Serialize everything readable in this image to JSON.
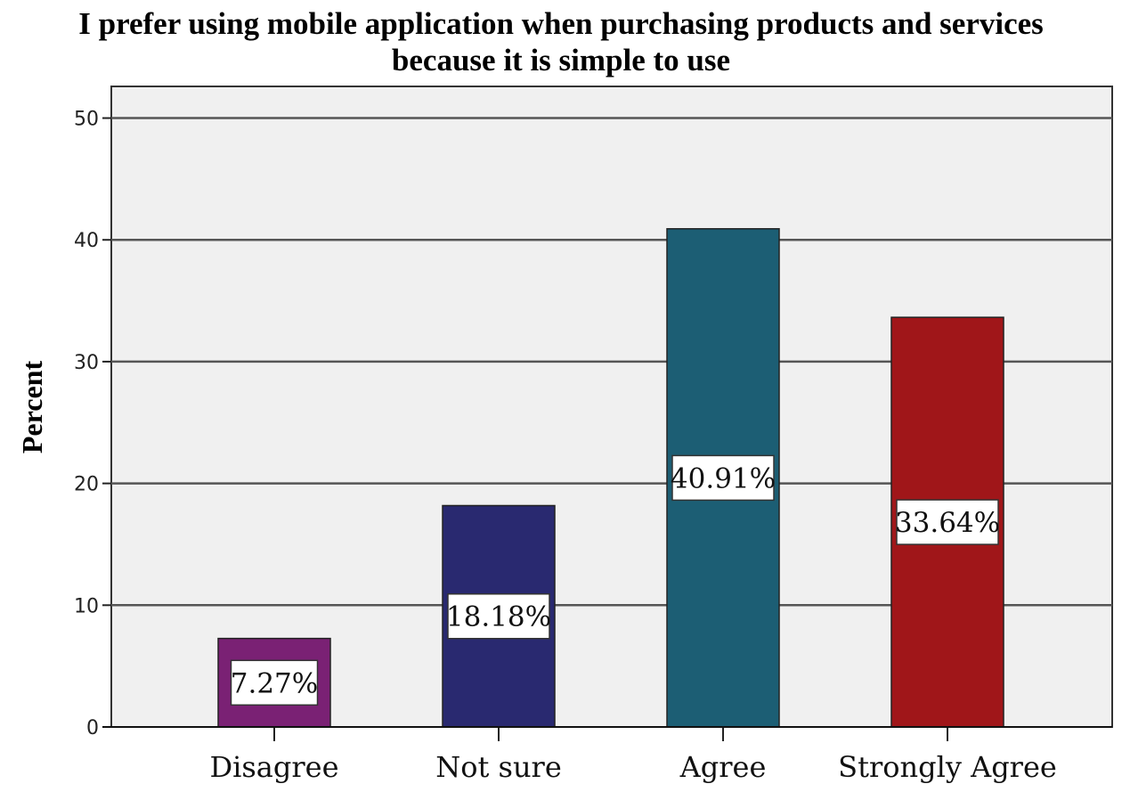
{
  "chart_data": {
    "type": "bar",
    "title_lines": [
      "I prefer using mobile application when purchasing products and services",
      "because it is simple to use"
    ],
    "xlabel": "",
    "ylabel": "Percent",
    "ylim": [
      0,
      52.6
    ],
    "yticks": [
      0,
      10,
      20,
      30,
      40,
      50
    ],
    "grid": true,
    "categories": [
      "Disagree",
      "Not sure",
      "Agree",
      "Strongly Agree"
    ],
    "values": [
      7.27,
      18.18,
      40.91,
      33.64
    ],
    "data_labels": [
      "7.27%",
      "18.18%",
      "40.91%",
      "33.64%"
    ],
    "colors": [
      "#7A2174",
      "#292970",
      "#1C5E74",
      "#A01619"
    ],
    "plot_background": "#F0F0F0",
    "gridline_color": "#555555"
  }
}
